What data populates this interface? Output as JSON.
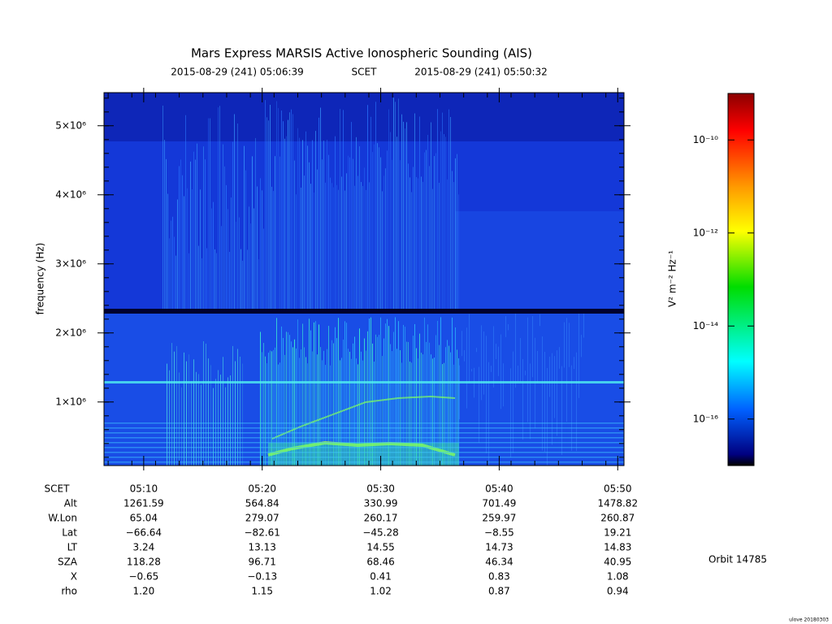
{
  "chart_data": {
    "type": "spectrogram",
    "title": "Mars Express MARSIS Active Ionospheric Sounding (AIS)",
    "start_time": "2015-08-29 (241) 05:06:39",
    "time_label": "SCET",
    "end_time": "2015-08-29 (241) 05:50:32",
    "ylabel": "frequency (Hz)",
    "ylim": [
      80000,
      5480000
    ],
    "yticks": [
      {
        "value": 1000000,
        "label": "1×10⁶"
      },
      {
        "value": 2000000,
        "label": "2×10⁶"
      },
      {
        "value": 3000000,
        "label": "3×10⁶"
      },
      {
        "value": 4000000,
        "label": "4×10⁶"
      },
      {
        "value": 5000000,
        "label": "5×10⁶"
      }
    ],
    "xlim": [
      6.65,
      50.53
    ],
    "xticks": [
      {
        "value": 10,
        "label": "05:10"
      },
      {
        "value": 20,
        "label": "05:20"
      },
      {
        "value": 30,
        "label": "05:30"
      },
      {
        "value": 40,
        "label": "05:40"
      },
      {
        "value": 50,
        "label": "05:50"
      }
    ],
    "colorbar": {
      "label": "V² m⁻² Hz⁻¹",
      "log": true,
      "zlim": [
        1e-17,
        1e-09
      ],
      "zticks": [
        {
          "value": 1e-10,
          "label": "10⁻¹⁰"
        },
        {
          "value": 1e-12,
          "label": "10⁻¹²"
        },
        {
          "value": 1e-14,
          "label": "10⁻¹⁴"
        },
        {
          "value": 1e-16,
          "label": "10⁻¹⁶"
        }
      ]
    },
    "ephemeris_header": "SCET",
    "ephemeris": [
      {
        "name": "Alt",
        "values": [
          "1261.59",
          "564.84",
          "330.99",
          "701.49",
          "1478.82"
        ]
      },
      {
        "name": "W.Lon",
        "values": [
          "65.04",
          "279.07",
          "260.17",
          "259.97",
          "260.87"
        ]
      },
      {
        "name": "Lat",
        "values": [
          "−66.64",
          "−82.61",
          "−45.28",
          "−8.55",
          "19.21"
        ]
      },
      {
        "name": "LT",
        "values": [
          "3.24",
          "13.13",
          "14.55",
          "14.73",
          "14.83"
        ]
      },
      {
        "name": "SZA",
        "values": [
          "118.28",
          "96.71",
          "68.46",
          "46.34",
          "40.95"
        ]
      },
      {
        "name": "X",
        "values": [
          "−0.65",
          "−0.13",
          "0.41",
          "0.83",
          "1.08"
        ]
      },
      {
        "name": "rho",
        "values": [
          "1.20",
          "1.15",
          "1.02",
          "0.87",
          "0.94"
        ]
      }
    ],
    "orbit": "Orbit 14785",
    "footer": "ulove 20180303"
  }
}
